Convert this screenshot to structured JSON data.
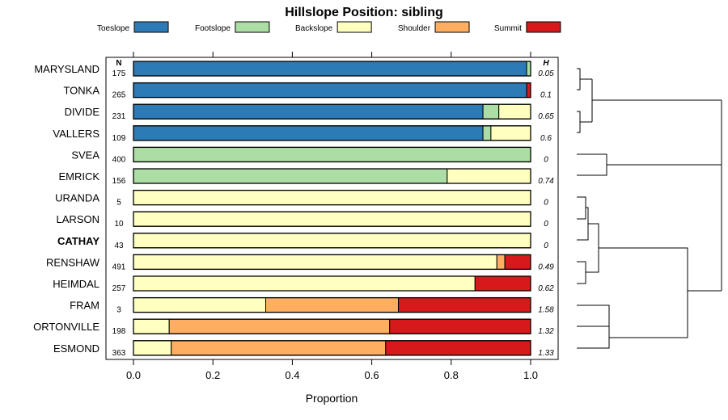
{
  "chart_data": {
    "type": "bar",
    "orientation": "horizontal",
    "stacked": true,
    "title": "Hillslope Position: sibling",
    "xlabel": "Proportion",
    "xlim": [
      0,
      1
    ],
    "xticks": [
      "0.0",
      "0.2",
      "0.4",
      "0.6",
      "0.8",
      "1.0"
    ],
    "n_header": "N",
    "h_header": "H",
    "legend": [
      {
        "name": "Toeslope",
        "color": "#2C7BB6"
      },
      {
        "name": "Footslope",
        "color": "#ABDDA4"
      },
      {
        "name": "Backslope",
        "color": "#FFFFBF"
      },
      {
        "name": "Shoulder",
        "color": "#FDAE61"
      },
      {
        "name": "Summit",
        "color": "#D7191C"
      }
    ],
    "rows": [
      {
        "name": "MARYSLAND",
        "n": "175",
        "h": "0.05",
        "bold": false,
        "values": [
          0.99,
          0.01,
          0,
          0,
          0
        ]
      },
      {
        "name": "TONKA",
        "n": "265",
        "h": "0.1",
        "bold": false,
        "values": [
          0.99,
          0,
          0,
          0,
          0.01
        ]
      },
      {
        "name": "DIVIDE",
        "n": "231",
        "h": "0.65",
        "bold": false,
        "values": [
          0.88,
          0.04,
          0.08,
          0,
          0
        ]
      },
      {
        "name": "VALLERS",
        "n": "109",
        "h": "0.6",
        "bold": false,
        "values": [
          0.88,
          0.02,
          0.1,
          0,
          0
        ]
      },
      {
        "name": "SVEA",
        "n": "400",
        "h": "0",
        "bold": false,
        "values": [
          0,
          1.0,
          0,
          0,
          0
        ]
      },
      {
        "name": "EMRICK",
        "n": "156",
        "h": "0.74",
        "bold": false,
        "values": [
          0,
          0.79,
          0.21,
          0,
          0
        ]
      },
      {
        "name": "URANDA",
        "n": "5",
        "h": "0",
        "bold": false,
        "values": [
          0,
          0,
          1.0,
          0,
          0
        ]
      },
      {
        "name": "LARSON",
        "n": "10",
        "h": "0",
        "bold": false,
        "values": [
          0,
          0,
          1.0,
          0,
          0
        ]
      },
      {
        "name": "CATHAY",
        "n": "43",
        "h": "0",
        "bold": true,
        "values": [
          0,
          0,
          1.0,
          0,
          0
        ]
      },
      {
        "name": "RENSHAW",
        "n": "491",
        "h": "0.49",
        "bold": false,
        "values": [
          0,
          0,
          0.915,
          0.02,
          0.065
        ]
      },
      {
        "name": "HEIMDAL",
        "n": "257",
        "h": "0.62",
        "bold": false,
        "values": [
          0,
          0,
          0.86,
          0,
          0.14
        ]
      },
      {
        "name": "FRAM",
        "n": "3",
        "h": "1.58",
        "bold": false,
        "values": [
          0,
          0,
          0.333,
          0.334,
          0.333
        ]
      },
      {
        "name": "ORTONVILLE",
        "n": "198",
        "h": "1.32",
        "bold": false,
        "values": [
          0,
          0,
          0.09,
          0.555,
          0.355
        ]
      },
      {
        "name": "ESMOND",
        "n": "363",
        "h": "1.33",
        "bold": false,
        "values": [
          0,
          0,
          0.095,
          0.54,
          0.365
        ]
      }
    ]
  }
}
